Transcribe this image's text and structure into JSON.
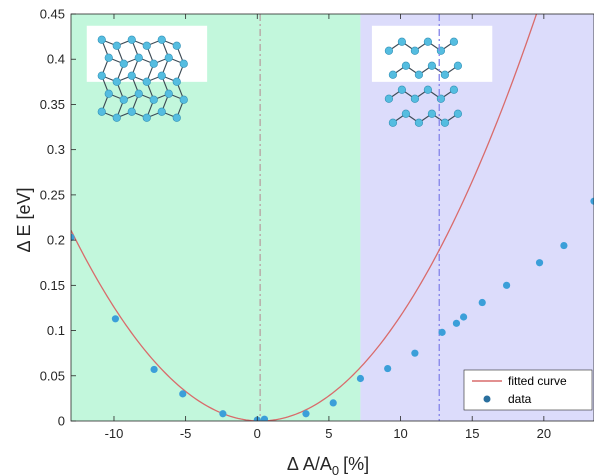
{
  "chart_data": {
    "type": "scatter",
    "xlabel": "Δ A/A",
    "xlabel_sub": "0",
    "xlabel_unit": "[%]",
    "ylabel": "Δ E [eV]",
    "xlim": [
      -13,
      23.5
    ],
    "ylim": [
      0,
      0.45
    ],
    "x_ticks": [
      -10,
      -5,
      0,
      5,
      10,
      15,
      20
    ],
    "y_ticks": [
      0,
      0.05,
      0.1,
      0.15,
      0.2,
      0.25,
      0.3,
      0.35,
      0.4,
      0.45
    ],
    "x_tick_labels": [
      "-10",
      "-5",
      "0",
      "5",
      "10",
      "15",
      "20"
    ],
    "y_tick_labels": [
      "0",
      "0.05",
      "0.1",
      "0.15",
      "0.2",
      "0.25",
      "0.3",
      "0.35",
      "0.4",
      "0.45"
    ],
    "regions": [
      {
        "x_from": -13,
        "x_to": 7.2,
        "color": "#c2f7dc"
      },
      {
        "x_from": 7.2,
        "x_to": 23.5,
        "color": "#dcdcfb"
      }
    ],
    "vlines": [
      {
        "x": 0.2,
        "color": "#b9a6a6"
      },
      {
        "x": 12.7,
        "color": "#8a8aea"
      }
    ],
    "fit": {
      "a": 0.00121,
      "x0": 0.2,
      "c": 0.0
    },
    "series": [
      {
        "name": "data",
        "color": "#3b9fd9",
        "x": [
          -13.0,
          -9.9,
          -7.2,
          -5.2,
          -2.4,
          0.0,
          0.5,
          3.4,
          5.3,
          7.2,
          9.1,
          11.0,
          12.9,
          13.9,
          14.4,
          15.7,
          17.4,
          19.7,
          21.4,
          23.5
        ],
        "y": [
          0.203,
          0.113,
          0.057,
          0.03,
          0.008,
          0.001,
          0.002,
          0.008,
          0.02,
          0.047,
          0.058,
          0.075,
          0.098,
          0.108,
          0.115,
          0.131,
          0.15,
          0.175,
          0.194,
          0.243
        ]
      }
    ],
    "legend": {
      "position": "bottom-right",
      "entries": [
        {
          "label": "fitted curve",
          "kind": "line",
          "color": "#d96b6b"
        },
        {
          "label": "data",
          "kind": "dot",
          "color": "#2a6f9e"
        }
      ]
    }
  },
  "insets": [
    {
      "name": "left",
      "x_from": -11.9,
      "x_to": -3.5,
      "y_from": 0.375,
      "y_to": 0.437,
      "kind": "buckled"
    },
    {
      "name": "right",
      "x_from": 8.0,
      "x_to": 16.4,
      "y_from": 0.375,
      "y_to": 0.437,
      "kind": "layered"
    }
  ]
}
